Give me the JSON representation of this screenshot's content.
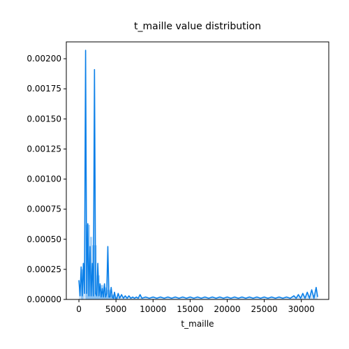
{
  "chart_data": {
    "type": "area",
    "title": "t_maille value distribution",
    "xlabel": "t_maille",
    "ylabel": "",
    "xlim": [
      -1700,
      33700
    ],
    "ylim": [
      0,
      0.00214
    ],
    "grid": false,
    "color": "#0a7fe8",
    "x_ticks": [
      {
        "value": 0,
        "label": "0"
      },
      {
        "value": 5000,
        "label": "5000"
      },
      {
        "value": 10000,
        "label": "10000"
      },
      {
        "value": 15000,
        "label": "15000"
      },
      {
        "value": 20000,
        "label": "20000"
      },
      {
        "value": 25000,
        "label": "25000"
      },
      {
        "value": 30000,
        "label": "30000"
      }
    ],
    "y_ticks": [
      {
        "value": 0,
        "label": "0.00000"
      },
      {
        "value": 0.00025,
        "label": "0.00025"
      },
      {
        "value": 0.0005,
        "label": "0.00050"
      },
      {
        "value": 0.00075,
        "label": "0.00075"
      },
      {
        "value": 0.001,
        "label": "0.00100"
      },
      {
        "value": 0.00125,
        "label": "0.00125"
      },
      {
        "value": 0.0015,
        "label": "0.00150"
      },
      {
        "value": 0.00175,
        "label": "0.00175"
      },
      {
        "value": 0.002,
        "label": "0.00200"
      }
    ],
    "series": [
      {
        "x": [
          0,
          150,
          300,
          450,
          600,
          750,
          900,
          1050,
          1200,
          1350,
          1500,
          1650,
          1800,
          1950,
          2100,
          2250,
          2400,
          2550,
          2700,
          2850,
          3000,
          3150,
          3300,
          3450,
          3600,
          3750,
          3900,
          4050,
          4200,
          4350,
          4500,
          4650,
          4800,
          4950,
          5100,
          5300,
          5500,
          5750,
          6000,
          6250,
          6500,
          6750,
          7000,
          7250,
          7500,
          7750,
          8000,
          8250,
          8500,
          9000,
          9500,
          10000,
          10500,
          11000,
          11500,
          12000,
          12500,
          13000,
          13500,
          14000,
          14500,
          15000,
          15500,
          16000,
          16500,
          17000,
          17500,
          18000,
          18500,
          19000,
          19500,
          20000,
          20500,
          21000,
          21500,
          22000,
          22500,
          23000,
          23500,
          24000,
          24500,
          25000,
          25500,
          26000,
          26500,
          27000,
          27500,
          28000,
          28500,
          29000,
          29300,
          29600,
          29900,
          30200,
          30500,
          30800,
          31100,
          31400,
          31700,
          32000,
          32200
        ],
        "y": [
          0.00016,
          3e-05,
          0.00027,
          3e-05,
          0.0003,
          5e-05,
          0.00207,
          5e-05,
          0.00063,
          3e-05,
          0.00044,
          3e-05,
          0.0003,
          3e-05,
          0.00191,
          5e-05,
          3e-05,
          0.0003,
          3e-05,
          0.00013,
          2e-05,
          9e-05,
          2e-05,
          0.00013,
          2e-05,
          5e-05,
          0.00044,
          2e-05,
          2e-05,
          0.0001,
          2e-05,
          1e-05,
          6e-05,
          1e-05,
          1e-05,
          5e-05,
          1e-05,
          4e-05,
          1e-05,
          3e-05,
          1e-05,
          3e-05,
          1e-05,
          2e-05,
          1e-05,
          2e-05,
          1e-05,
          4e-05,
          1e-05,
          2e-05,
          1e-05,
          2e-05,
          1e-05,
          2e-05,
          1e-05,
          2e-05,
          1e-05,
          2e-05,
          1e-05,
          2e-05,
          1e-05,
          2e-05,
          1e-05,
          2e-05,
          1e-05,
          2e-05,
          1e-05,
          2e-05,
          1e-05,
          2e-05,
          1e-05,
          2e-05,
          1e-05,
          2e-05,
          1e-05,
          2e-05,
          1e-05,
          2e-05,
          1e-05,
          2e-05,
          1e-05,
          2e-05,
          1e-05,
          2e-05,
          1e-05,
          2e-05,
          1e-05,
          2e-05,
          1e-05,
          3e-05,
          1e-05,
          4e-05,
          1e-05,
          5e-05,
          1e-05,
          6e-05,
          1e-05,
          8e-05,
          1e-05,
          0.0001,
          2e-05
        ]
      }
    ],
    "hist_bars": [
      {
        "x0": 300,
        "x1": 600,
        "y": 0.00025
      },
      {
        "x0": 900,
        "x1": 1200,
        "y": 0.00062
      },
      {
        "x0": 1200,
        "x1": 1500,
        "y": 0.00062
      },
      {
        "x0": 1500,
        "x1": 1800,
        "y": 0.00052
      },
      {
        "x0": 1800,
        "x1": 2100,
        "y": 0.00045
      },
      {
        "x0": 2100,
        "x1": 2400,
        "y": 0.00045
      },
      {
        "x0": 2400,
        "x1": 2800,
        "y": 0.0002
      },
      {
        "x0": 2800,
        "x1": 3300,
        "y": 0.00012
      },
      {
        "x0": 3300,
        "x1": 3800,
        "y": 0.0001
      },
      {
        "x0": 3800,
        "x1": 4300,
        "y": 8e-05
      },
      {
        "x0": 4300,
        "x1": 4800,
        "y": 4e-05
      },
      {
        "x0": 4800,
        "x1": 5300,
        "y": 2e-05
      }
    ]
  }
}
